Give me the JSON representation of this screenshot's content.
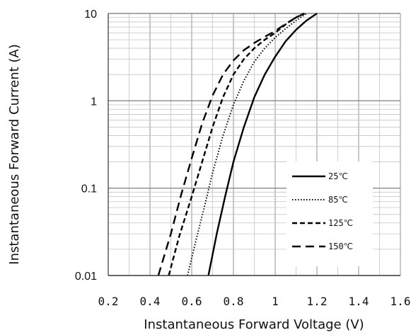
{
  "chart_data": {
    "type": "line",
    "title": "",
    "xlabel": "Instantaneous Forward Voltage (V)",
    "ylabel": "Instantaneous Forward Current (A)",
    "x_scale": "linear",
    "y_scale": "log",
    "xlim": [
      0.2,
      1.6
    ],
    "ylim": [
      0.01,
      10
    ],
    "x_ticks": [
      "0.2",
      "0.4",
      "0.6",
      "0.8",
      "1",
      "1.2",
      "1.4",
      "1.6"
    ],
    "y_ticks": [
      "0.01",
      "0.1",
      "1",
      "10"
    ],
    "grid": true,
    "legend_position": "bottom-right",
    "series": [
      {
        "name": "25℃",
        "style": "solid",
        "color": "#000000",
        "points": [
          [
            0.68,
            0.01
          ],
          [
            0.72,
            0.03
          ],
          [
            0.76,
            0.08
          ],
          [
            0.8,
            0.2
          ],
          [
            0.85,
            0.5
          ],
          [
            0.9,
            1.1
          ],
          [
            0.95,
            2.0
          ],
          [
            1.0,
            3.2
          ],
          [
            1.05,
            4.8
          ],
          [
            1.1,
            6.5
          ],
          [
            1.15,
            8.3
          ],
          [
            1.2,
            10.0
          ]
        ]
      },
      {
        "name": "85℃",
        "style": "dotted",
        "color": "#000000",
        "points": [
          [
            0.58,
            0.01
          ],
          [
            0.62,
            0.025
          ],
          [
            0.66,
            0.06
          ],
          [
            0.7,
            0.15
          ],
          [
            0.75,
            0.4
          ],
          [
            0.8,
            0.9
          ],
          [
            0.85,
            1.7
          ],
          [
            0.9,
            2.8
          ],
          [
            0.95,
            4.0
          ],
          [
            1.0,
            5.3
          ],
          [
            1.05,
            6.7
          ],
          [
            1.1,
            8.3
          ],
          [
            1.15,
            10.0
          ]
        ]
      },
      {
        "name": "125℃",
        "style": "dashed",
        "color": "#000000",
        "points": [
          [
            0.49,
            0.01
          ],
          [
            0.54,
            0.028
          ],
          [
            0.6,
            0.08
          ],
          [
            0.65,
            0.2
          ],
          [
            0.7,
            0.5
          ],
          [
            0.75,
            1.1
          ],
          [
            0.8,
            2.0
          ],
          [
            0.85,
            3.0
          ],
          [
            0.9,
            4.0
          ],
          [
            0.95,
            5.0
          ],
          [
            1.0,
            6.0
          ],
          [
            1.05,
            7.5
          ],
          [
            1.1,
            9.0
          ],
          [
            1.14,
            10.0
          ]
        ]
      },
      {
        "name": "150℃",
        "style": "longdash",
        "color": "#000000",
        "points": [
          [
            0.44,
            0.01
          ],
          [
            0.5,
            0.03
          ],
          [
            0.55,
            0.085
          ],
          [
            0.6,
            0.22
          ],
          [
            0.65,
            0.55
          ],
          [
            0.7,
            1.15
          ],
          [
            0.75,
            2.0
          ],
          [
            0.8,
            2.9
          ],
          [
            0.85,
            3.8
          ],
          [
            0.9,
            4.6
          ],
          [
            0.95,
            5.4
          ],
          [
            1.0,
            6.3
          ],
          [
            1.05,
            7.6
          ],
          [
            1.1,
            9.0
          ],
          [
            1.14,
            10.0
          ]
        ]
      }
    ]
  }
}
